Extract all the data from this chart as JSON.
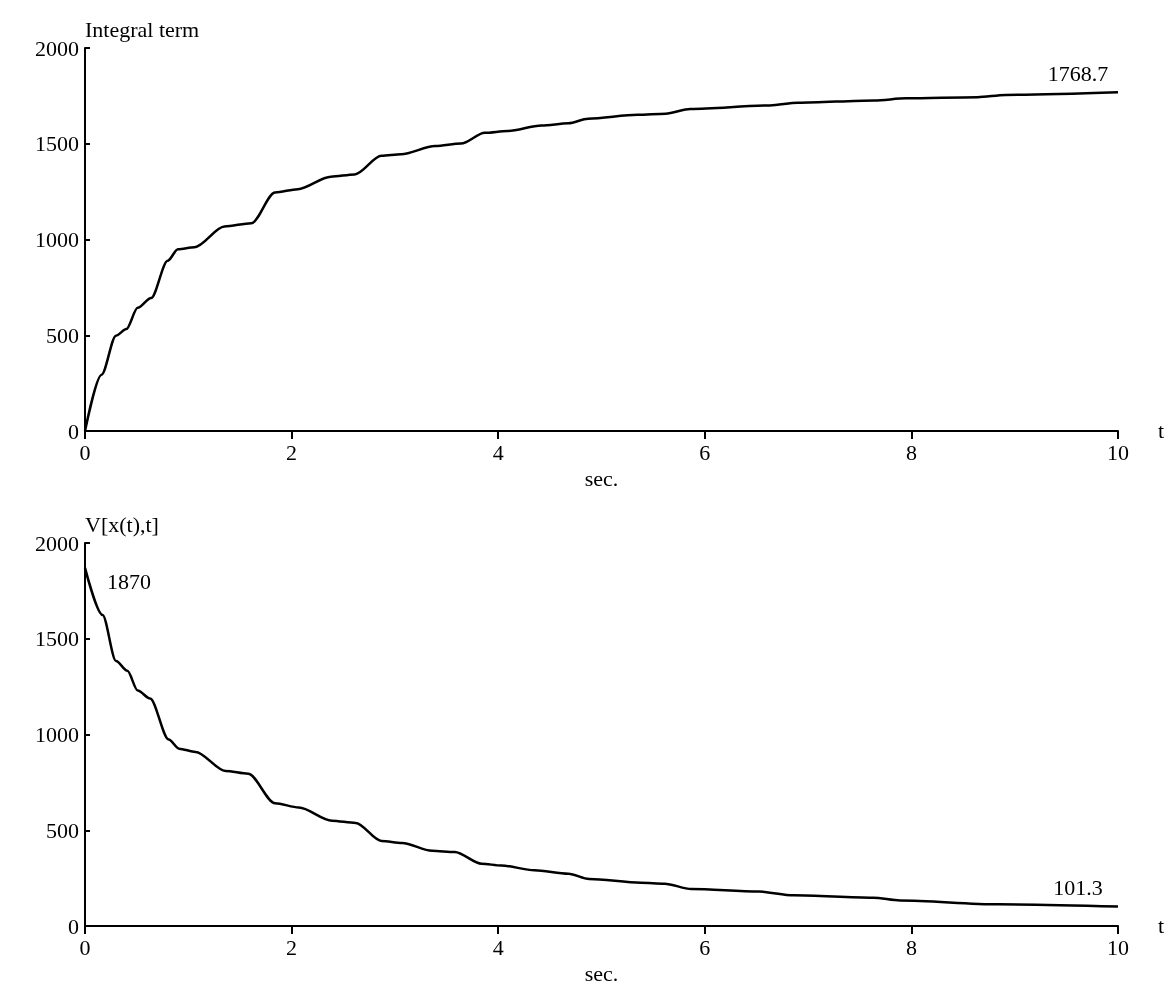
{
  "chart_data": [
    {
      "type": "line",
      "ylabel": "Integral term",
      "xlabel": "sec.",
      "color": "#000000",
      "x": [
        0,
        0.16,
        0.3,
        0.4,
        0.51,
        0.64,
        0.8,
        0.9,
        1.06,
        1.35,
        1.61,
        1.84,
        2.06,
        2.38,
        2.61,
        2.87,
        3.06,
        3.39,
        3.64,
        3.87,
        4.09,
        4.42,
        4.68,
        4.87,
        5.35,
        5.62,
        5.86,
        6.63,
        6.9,
        7.64,
        7.95,
        8.64,
        8.91,
        10
      ],
      "values": [
        0,
        294,
        498,
        532,
        643,
        694,
        889,
        949,
        960,
        1068,
        1085,
        1246,
        1263,
        1328,
        1340,
        1437,
        1445,
        1488,
        1501,
        1557,
        1566,
        1595,
        1607,
        1631,
        1651,
        1657,
        1682,
        1700,
        1714,
        1726,
        1737,
        1743,
        1755,
        1768.7
      ],
      "value_labels": [
        null,
        null,
        null,
        null,
        null,
        null,
        null,
        null,
        null,
        null,
        null,
        null,
        null,
        null,
        null,
        null,
        null,
        null,
        null,
        null,
        null,
        null,
        null,
        null,
        null,
        null,
        null,
        null,
        null,
        null,
        null,
        null,
        null,
        "1768.7"
      ],
      "xlim": [
        0,
        10
      ],
      "xticks": [
        0,
        2,
        4,
        6,
        8,
        10
      ],
      "ylim": [
        0,
        2000
      ],
      "yticks": [
        0,
        500,
        1000,
        1500,
        2000
      ],
      "annotations": [
        "t"
      ]
    },
    {
      "type": "line",
      "ylabel": "V[x(t),t]",
      "xlabel": "sec.",
      "color": "#000000",
      "x": [
        0,
        0.17,
        0.3,
        0.41,
        0.51,
        0.63,
        0.81,
        0.91,
        1.07,
        1.36,
        1.58,
        1.84,
        2.07,
        2.39,
        2.62,
        2.87,
        3.07,
        3.36,
        3.58,
        3.84,
        4.03,
        4.35,
        4.68,
        4.88,
        5.38,
        5.61,
        5.87,
        6.52,
        6.86,
        7.63,
        7.89,
        8.84,
        10
      ],
      "values": [
        1870,
        1624,
        1384,
        1333,
        1230,
        1188,
        974,
        926,
        909,
        810,
        795,
        641,
        619,
        550,
        538,
        444,
        434,
        393,
        386,
        325,
        316,
        291,
        273,
        246,
        226,
        221,
        193,
        180,
        160,
        148,
        133,
        113,
        101.3
      ],
      "value_labels": [
        "1870",
        null,
        null,
        null,
        null,
        null,
        null,
        null,
        null,
        null,
        null,
        null,
        null,
        null,
        null,
        null,
        null,
        null,
        null,
        null,
        null,
        null,
        null,
        null,
        null,
        null,
        null,
        null,
        null,
        null,
        null,
        null,
        "101.3"
      ],
      "xlim": [
        0,
        10
      ],
      "xticks": [
        0,
        2,
        4,
        6,
        8,
        10
      ],
      "ylim": [
        0,
        2000
      ],
      "yticks": [
        0,
        500,
        1000,
        1500,
        2000
      ],
      "annotations": [
        "t"
      ]
    }
  ]
}
